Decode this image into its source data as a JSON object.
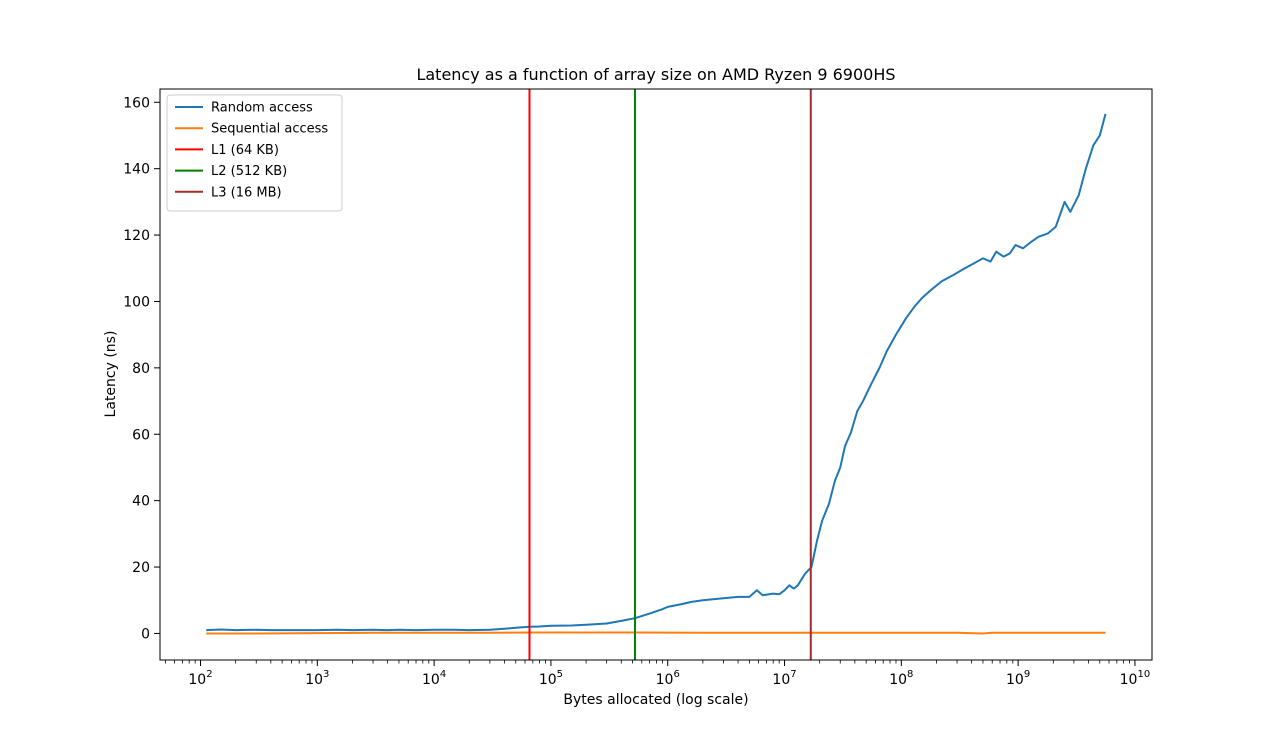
{
  "chart_data": {
    "type": "line",
    "title": "Latency as a function of array size on AMD Ryzen 9 6900HS",
    "xlabel": "Bytes allocated (log scale)",
    "ylabel": "Latency (ns)",
    "xscale": "log",
    "xlim": [
      45,
      14000000000
    ],
    "ylim": [
      -8,
      164
    ],
    "grid": false,
    "legend_position": "upper-left",
    "x_ticks": [
      {
        "base": "10",
        "exp": "2",
        "value": 100
      },
      {
        "base": "10",
        "exp": "3",
        "value": 1000
      },
      {
        "base": "10",
        "exp": "4",
        "value": 10000
      },
      {
        "base": "10",
        "exp": "5",
        "value": 100000
      },
      {
        "base": "10",
        "exp": "6",
        "value": 1000000
      },
      {
        "base": "10",
        "exp": "7",
        "value": 10000000
      },
      {
        "base": "10",
        "exp": "8",
        "value": 100000000
      },
      {
        "base": "10",
        "exp": "9",
        "value": 1000000000
      },
      {
        "base": "10",
        "exp": "10",
        "value": 10000000000
      }
    ],
    "y_ticks": [
      {
        "label": "0",
        "value": 0
      },
      {
        "label": "20",
        "value": 20
      },
      {
        "label": "40",
        "value": 40
      },
      {
        "label": "60",
        "value": 60
      },
      {
        "label": "80",
        "value": 80
      },
      {
        "label": "100",
        "value": 100
      },
      {
        "label": "120",
        "value": 120
      },
      {
        "label": "140",
        "value": 140
      },
      {
        "label": "160",
        "value": 160
      }
    ],
    "series": [
      {
        "name": "Random access",
        "color": "#1f77b4",
        "x": [
          112,
          150,
          200,
          300,
          400,
          500,
          700,
          1000,
          1500,
          2000,
          3000,
          4000,
          5000,
          7000,
          10000,
          15000,
          20000,
          30000,
          40000,
          50000,
          65536,
          80000,
          100000,
          150000,
          200000,
          300000,
          400000,
          524288,
          700000,
          900000,
          1000000,
          1300000,
          1600000,
          2000000,
          3000000,
          4000000,
          5000000,
          5800000,
          6500000,
          8000000,
          9000000,
          10000000,
          11000000,
          12000000,
          13000000,
          15000000,
          17000000,
          19000000,
          21000000,
          24000000,
          27000000,
          30000000,
          33000000,
          37000000,
          42000000,
          47000000,
          55000000,
          65000000,
          75000000,
          90000000,
          110000000,
          130000000,
          150000000,
          180000000,
          220000000,
          280000000,
          350000000,
          420000000,
          500000000,
          580000000,
          650000000,
          750000000,
          850000000,
          950000000,
          1100000000,
          1300000000,
          1500000000,
          1800000000,
          2100000000,
          2500000000,
          2800000000,
          3300000000,
          3800000000,
          4400000000,
          5000000000,
          5600000000
        ],
        "y": [
          1.0,
          1.2,
          1.0,
          1.1,
          1.0,
          1.0,
          1.0,
          1.0,
          1.1,
          1.0,
          1.1,
          1.0,
          1.1,
          1.0,
          1.1,
          1.1,
          1.0,
          1.1,
          1.4,
          1.7,
          2.0,
          2.1,
          2.3,
          2.4,
          2.6,
          3.0,
          3.8,
          4.6,
          6.0,
          7.3,
          8.0,
          8.8,
          9.5,
          10.0,
          10.6,
          11.0,
          11.0,
          13.0,
          11.5,
          12.0,
          11.8,
          13.0,
          14.5,
          13.5,
          14.5,
          18.0,
          20.0,
          28.0,
          34.0,
          39.0,
          46.0,
          50.0,
          56.5,
          60.5,
          67.0,
          70.0,
          75.0,
          80.0,
          85.0,
          90.0,
          95.0,
          98.5,
          101.0,
          103.5,
          106.0,
          108.0,
          110.0,
          111.5,
          113.0,
          112.0,
          115.0,
          113.5,
          114.5,
          117.0,
          116.0,
          118.0,
          119.5,
          120.5,
          122.5,
          130.0,
          127.0,
          132.0,
          140.0,
          147.0,
          150.0,
          156.5
        ]
      },
      {
        "name": "Sequential access",
        "color": "#ff7f0e",
        "x": [
          112,
          300,
          1000,
          3000,
          10000,
          30000,
          65536,
          200000,
          524288,
          2000000,
          5000000,
          10000000,
          30000000,
          100000000,
          300000000,
          500000000,
          600000000,
          1000000000,
          3000000000,
          5600000000
        ],
        "y": [
          0.0,
          0.0,
          0.1,
          0.2,
          0.2,
          0.2,
          0.3,
          0.3,
          0.3,
          0.2,
          0.2,
          0.2,
          0.2,
          0.2,
          0.2,
          0.0,
          0.2,
          0.2,
          0.2,
          0.2
        ]
      }
    ],
    "vlines": [
      {
        "name": "L1 (64 KB)",
        "x": 65536,
        "color": "#ff0000"
      },
      {
        "name": "L2 (512 KB)",
        "x": 524288,
        "color": "#008000"
      },
      {
        "name": "L3 (16 MB)",
        "x": 16777216,
        "color": "#a52a2a"
      }
    ]
  }
}
